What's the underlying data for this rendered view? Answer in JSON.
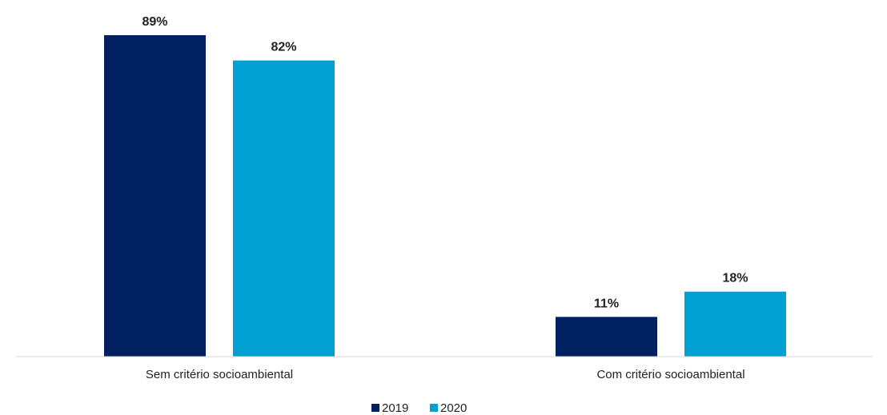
{
  "chart_data": {
    "type": "bar",
    "categories": [
      "Sem critério socioambiental",
      "Com critério socioambiental"
    ],
    "series": [
      {
        "name": "2019",
        "values": [
          89,
          11
        ],
        "labels": [
          "89%",
          "11%"
        ],
        "color": "#002060"
      },
      {
        "name": "2020",
        "values": [
          82,
          18
        ],
        "labels": [
          "82%",
          "18%"
        ],
        "color": "#00A0D2"
      }
    ],
    "ylim": [
      0,
      89
    ],
    "grid": false,
    "legend": "bottom-center",
    "axis_color": "#d9d9d9"
  }
}
